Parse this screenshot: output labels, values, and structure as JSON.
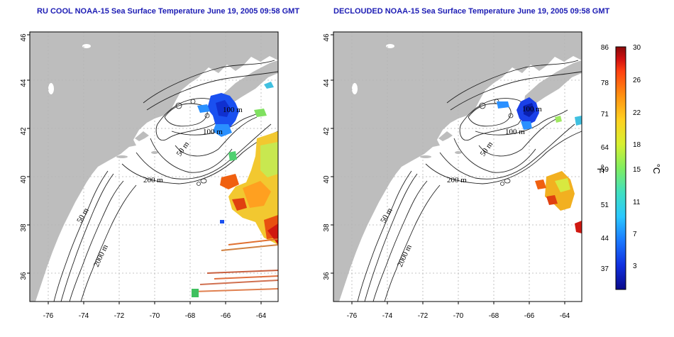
{
  "titles": {
    "left": "RU COOL NOAA-15 Sea Surface Temperature June 19, 2005 09:58 GMT",
    "right": "DECLOUDED NOAA-15 Sea Surface Temperature June 19, 2005 09:58 GMT"
  },
  "axes": {
    "y_ticks": [
      "46",
      "44",
      "42",
      "40",
      "38",
      "36"
    ],
    "x_ticks": [
      "-76",
      "-74",
      "-72",
      "-70",
      "-68",
      "-66",
      "-64"
    ]
  },
  "contour_labels": [
    "100 m",
    "100 m",
    "50 m",
    "200 m",
    "50 m",
    "2000 m"
  ],
  "colorbar": {
    "f_ticks": [
      "86",
      "78",
      "71",
      "64",
      "59",
      "51",
      "44",
      "37"
    ],
    "c_ticks": [
      "30",
      "26",
      "22",
      "18",
      "15",
      "11",
      "7",
      "3"
    ],
    "f_unit": "°F",
    "c_unit": "°C",
    "colors": [
      "#0a0a8a",
      "#1030e0",
      "#1a78ff",
      "#2ac8ff",
      "#40e0c0",
      "#80ee60",
      "#d8f030",
      "#ffd020",
      "#ff9010",
      "#ff4010",
      "#d01010",
      "#8a0a0a"
    ]
  },
  "colors": {
    "land": "#bdbdbd",
    "title": "#1c1cb4",
    "grid": "#b4b4b4"
  }
}
